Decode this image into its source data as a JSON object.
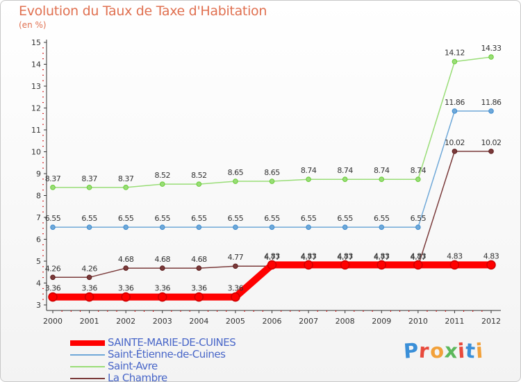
{
  "title": "Evolution du Taux de Taxe d'Habitation",
  "subtitle": "(en %)",
  "logo_text": "Proxiti",
  "logo_colors": [
    "#3a8fd8",
    "#e84a3c",
    "#f2a13a",
    "#5cb85c",
    "#e84a3c",
    "#3a8fd8",
    "#f2a13a"
  ],
  "chart_data": {
    "type": "line",
    "x": [
      "2000",
      "2001",
      "2002",
      "2003",
      "2004",
      "2005",
      "2006",
      "2007",
      "2008",
      "2009",
      "2010",
      "2011",
      "2012"
    ],
    "ylim": [
      3,
      15
    ],
    "yticks": [
      3,
      4,
      5,
      6,
      7,
      8,
      9,
      10,
      11,
      12,
      13,
      14,
      15
    ],
    "grid": false,
    "legend_position": "bottom-left",
    "series": [
      {
        "name": "SAINTE-MARIE-DE-CUINES",
        "values": [
          3.36,
          3.36,
          3.36,
          3.36,
          3.36,
          3.36,
          4.83,
          4.83,
          4.83,
          4.83,
          4.83,
          4.83,
          4.83
        ],
        "labels": [
          "3.36",
          "3.36",
          "3.36",
          "3.36",
          "3.36",
          "3.36",
          "4.83",
          "4.83",
          "4.83",
          "4.83",
          "4.83",
          "4.83",
          "4.83"
        ],
        "color": "#ff0000",
        "marker": "#cc0000",
        "emphasis": true
      },
      {
        "name": "Saint-Étienne-de-Cuines",
        "values": [
          6.55,
          6.55,
          6.55,
          6.55,
          6.55,
          6.55,
          6.55,
          6.55,
          6.55,
          6.55,
          6.55,
          11.86,
          11.86
        ],
        "labels": [
          "6.55",
          "6.55",
          "6.55",
          "6.55",
          "6.55",
          "6.55",
          "6.55",
          "6.55",
          "6.55",
          "6.55",
          "6.55",
          "11.86",
          "11.86"
        ],
        "color": "#6fa8d8",
        "marker": "#3b8bd0"
      },
      {
        "name": "Saint-Avre",
        "values": [
          8.37,
          8.37,
          8.37,
          8.52,
          8.52,
          8.65,
          8.65,
          8.74,
          8.74,
          8.74,
          8.74,
          14.12,
          14.33
        ],
        "labels": [
          "8.37",
          "8.37",
          "8.37",
          "8.52",
          "8.52",
          "8.65",
          "8.65",
          "8.74",
          "8.74",
          "8.74",
          "8.74",
          "14.12",
          "14.33"
        ],
        "color": "#99dd77",
        "marker": "#66cc33"
      },
      {
        "name": "La Chambre",
        "values": [
          4.26,
          4.26,
          4.68,
          4.68,
          4.68,
          4.77,
          4.77,
          4.77,
          4.77,
          4.77,
          4.77,
          10.02,
          10.02
        ],
        "labels": [
          "4.26",
          "4.26",
          "4.68",
          "4.68",
          "4.68",
          "4.77",
          "4.77",
          "4.77",
          "4.77",
          "4.77",
          "4.77",
          "10.02",
          "10.02"
        ],
        "color": "#7a3a3a",
        "marker": "#5a1a1a"
      }
    ]
  }
}
